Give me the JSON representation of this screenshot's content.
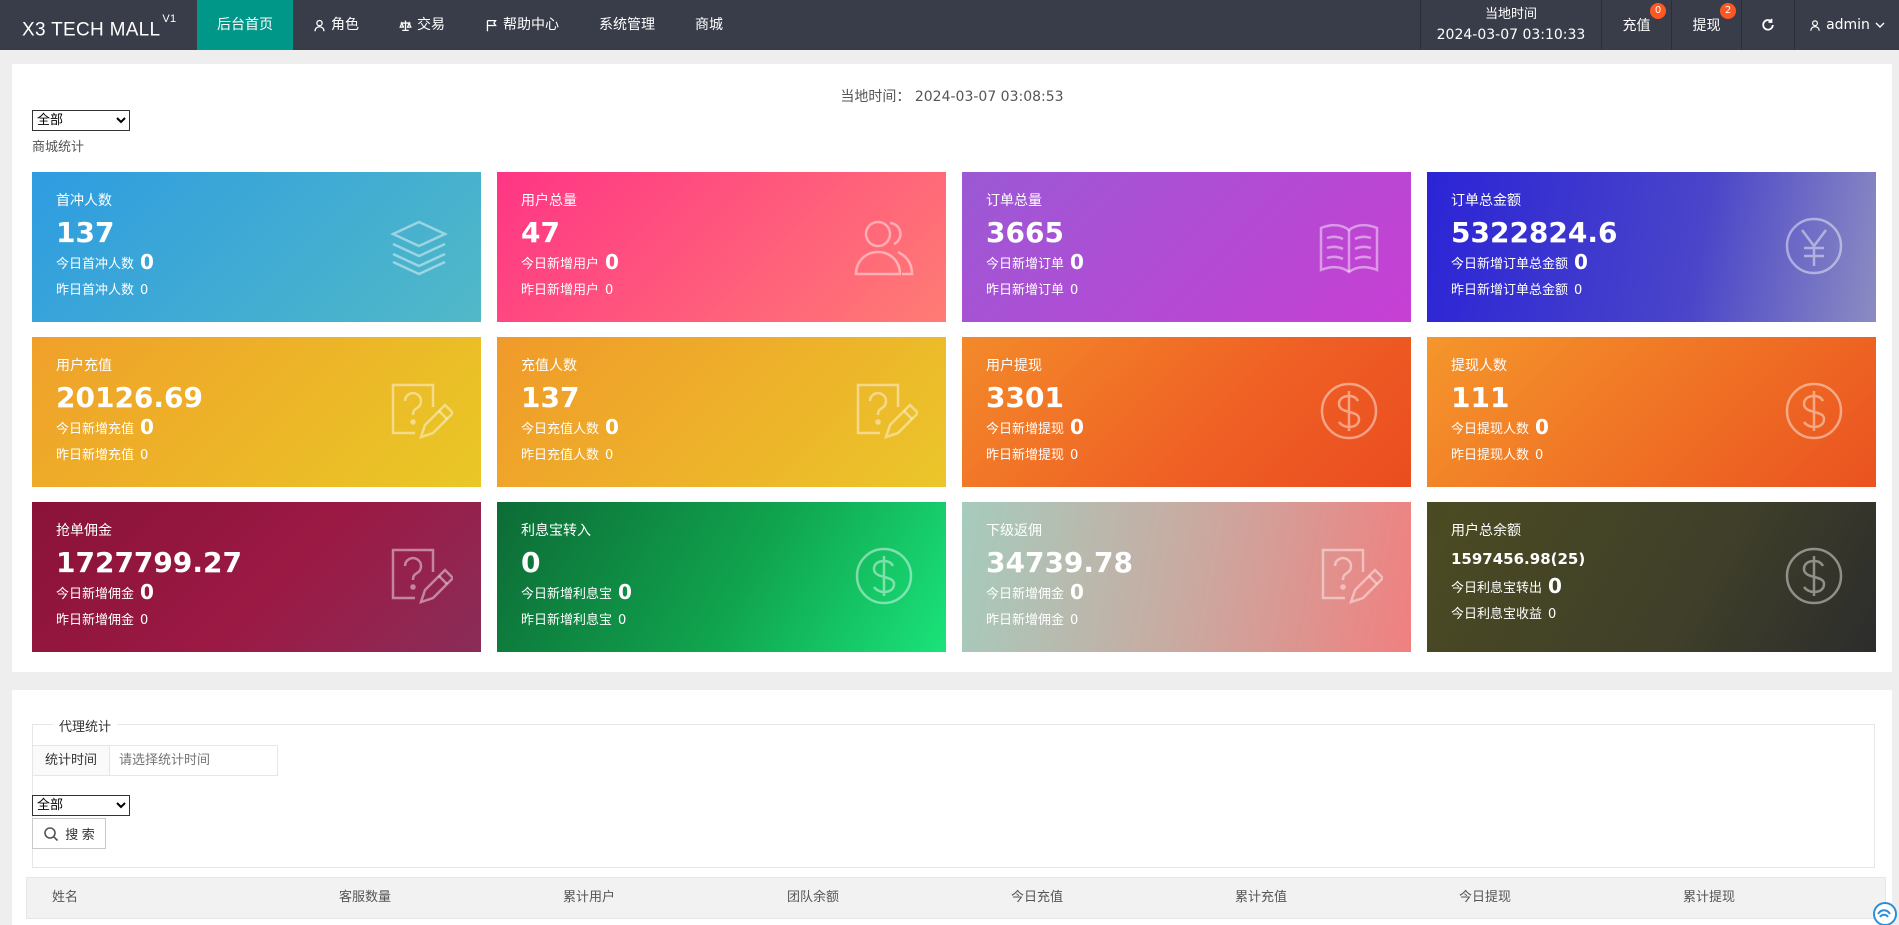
{
  "topbar": {
    "logo": "X3 TECH MALL",
    "logo_sup": "V1",
    "nav": [
      {
        "label": "后台首页",
        "icon": "none",
        "active": true
      },
      {
        "label": "角色",
        "icon": "user-icon",
        "active": false
      },
      {
        "label": "交易",
        "icon": "scale-icon",
        "active": false
      },
      {
        "label": "帮助中心",
        "icon": "flag-icon",
        "active": false
      },
      {
        "label": "系统管理",
        "icon": "none",
        "active": false
      },
      {
        "label": "商城",
        "icon": "none",
        "active": false
      }
    ],
    "time_label": "当地时间",
    "time_value": "2024-03-07 03:10:33",
    "charge_label": "充值",
    "charge_badge": "0",
    "withdraw_label": "提现",
    "withdraw_badge": "2",
    "user_label": "admin"
  },
  "stats": {
    "local_time": "当地时间： 2024-03-07 03:08:53",
    "select_value": "全部",
    "section_label": "商城统计",
    "cards": [
      {
        "title": "首冲人数",
        "value": "137",
        "today_label": "今日首冲人数",
        "today_value": "0",
        "yest_label": "昨日首冲人数",
        "yest_value": "0",
        "icon": "layers-icon",
        "color_from": "#2e9ce1",
        "color_to": "#51b9c7"
      },
      {
        "title": "用户总量",
        "value": "47",
        "today_label": "今日新增用户",
        "today_value": "0",
        "yest_label": "昨日新增用户",
        "yest_value": "0",
        "icon": "users-icon",
        "color_from": "#ff3585",
        "color_to": "#ff7c74"
      },
      {
        "title": "订单总量",
        "value": "3665",
        "today_label": "今日新增订单",
        "today_value": "0",
        "yest_label": "昨日新增订单",
        "yest_value": "0",
        "icon": "book-icon",
        "color_from": "#9b59d4",
        "color_to": "#c73fd4"
      },
      {
        "title": "订单总金额",
        "value": "5322824.6",
        "today_label": "今日新增订单总金额",
        "today_value": "0",
        "yest_label": "昨日新增订单总金额",
        "yest_value": "0",
        "icon": "yen-icon",
        "color_from": "#2b24d6",
        "color_to": "#8c8cc2"
      },
      {
        "title": "用户充值",
        "value": "20126.69",
        "today_label": "今日新增充值",
        "today_value": "0",
        "yest_label": "昨日新增充值",
        "yest_value": "0",
        "icon": "question-edit-icon",
        "color_from": "#f0a02a",
        "color_to": "#e9c826"
      },
      {
        "title": "充值人数",
        "value": "137",
        "today_label": "今日充值人数",
        "today_value": "0",
        "yest_label": "昨日充值人数",
        "yest_value": "0",
        "icon": "question-edit-icon",
        "color_from": "#f09a2a",
        "color_to": "#ebc62a"
      },
      {
        "title": "用户提现",
        "value": "3301",
        "today_label": "今日新增提现",
        "today_value": "0",
        "yest_label": "昨日新增提现",
        "yest_value": "0",
        "icon": "dollar-icon",
        "color_from": "#f38a2a",
        "color_to": "#ea4d20"
      },
      {
        "title": "提现人数",
        "value": "111",
        "today_label": "今日提现人数",
        "today_value": "0",
        "yest_label": "昨日提现人数",
        "yest_value": "0",
        "icon": "dollar-icon",
        "color_from": "#f5962b",
        "color_to": "#ea5220"
      },
      {
        "title": "抢单佣金",
        "value": "1727799.27",
        "today_label": "今日新增佣金",
        "today_value": "0",
        "yest_label": "昨日新增佣金",
        "yest_value": "0",
        "icon": "question-edit-icon",
        "color_from": "#8a1238",
        "color_to": "#8a2d58"
      },
      {
        "title": "利息宝转入",
        "value": "0",
        "today_label": "今日新增利息宝",
        "today_value": "0",
        "yest_label": "昨日新增利息宝",
        "yest_value": "0",
        "icon": "dollar-icon",
        "color_from": "#0d6b36",
        "color_to": "#1ae37a"
      },
      {
        "title": "下级返佣",
        "value": "34739.78",
        "today_label": "今日新增佣金",
        "today_value": "0",
        "yest_label": "昨日新增佣金",
        "yest_value": "0",
        "icon": "question-edit-icon",
        "color_from": "#a5ccbd",
        "color_to": "#f08080"
      },
      {
        "title": "用户总余额",
        "value": "1597456.98(25)",
        "today_label": "今日利息宝转出",
        "today_value": "0",
        "yest_label": "今日利息宝收益",
        "yest_value": "0",
        "icon": "dollar-icon",
        "color_from": "#4b4b22",
        "color_to": "#2c2c2c"
      }
    ]
  },
  "agent": {
    "legend": "代理统计",
    "time_label": "统计时间",
    "time_placeholder": "请选择统计时间",
    "select_value": "全部",
    "search_label": "搜 索",
    "columns": [
      "姓名",
      "客服数量",
      "累计用户",
      "团队余额",
      "今日充值",
      "累计充值",
      "今日提现",
      "累计提现"
    ]
  }
}
